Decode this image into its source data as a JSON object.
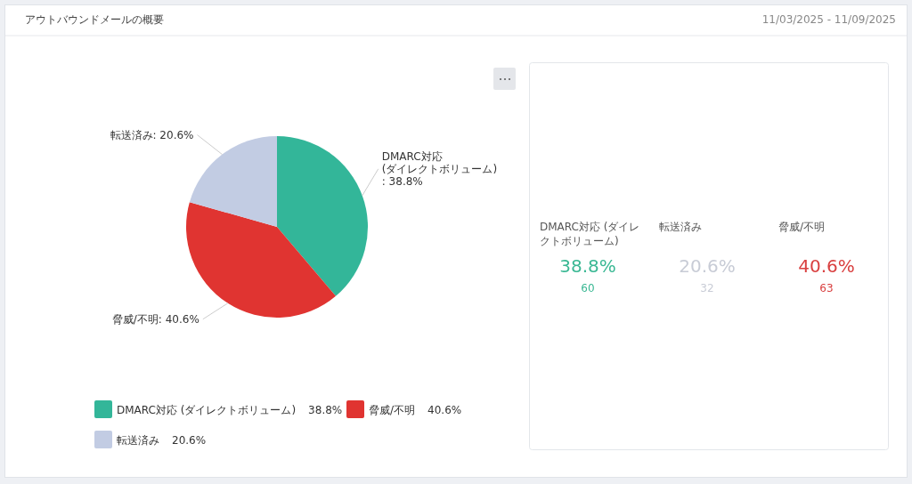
{
  "chart_data": [
    {
      "type": "other",
      "title": "アウトバウンドメールの概要",
      "subtitle": "11/03/2025 - 11/09/2025"
    },
    {
      "type": "pie",
      "categories": [
        "DMARC対応 (ダイレクトボリューム)",
        "脅威/不明",
        "転送済み"
      ],
      "values": [
        38.8,
        40.6,
        20.6
      ],
      "value_labels": [
        "38.8%",
        "40.6%",
        "20.6%"
      ],
      "colors": [
        "#33b699",
        "#e03431",
        "#c2cce3"
      ],
      "legend": "bottom",
      "annotations": [
        "DMARC対応\n(ダイレクトボリューム)\n: 38.8%",
        "脅威/不明: 40.6%",
        "転送済み: 20.6%"
      ]
    },
    {
      "type": "other",
      "annotations": [
        "DMARC対応 (ダイレクトボリューム)",
        "38.8%",
        "60",
        "転送済み",
        "20.6%",
        "32",
        "脅威/不明",
        "40.6%",
        "63"
      ],
      "colors": [
        "#3bb894",
        "#c8ccd6",
        "#d94040"
      ]
    }
  ]
}
